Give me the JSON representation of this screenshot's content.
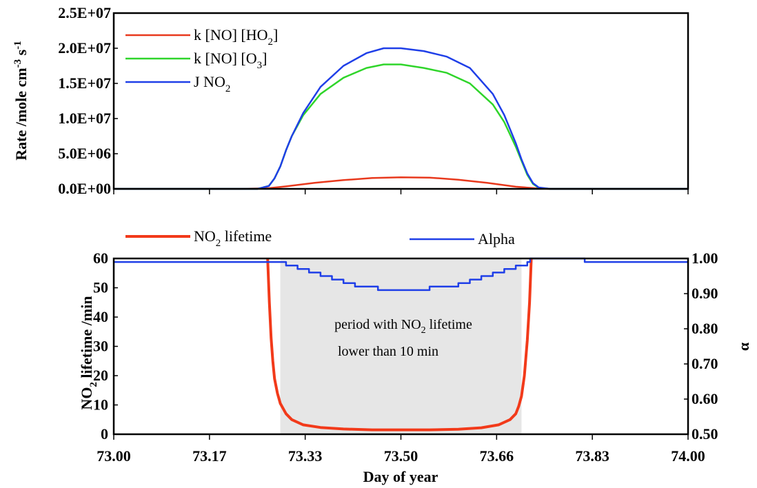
{
  "chart_data": [
    {
      "type": "line",
      "ylabel_main": "Rate /mole cm",
      "ylabel_sup1": "-3",
      "ylabel_mid": " s",
      "ylabel_sup2": "-1",
      "xlim": [
        73.0,
        74.0
      ],
      "ylim": [
        0,
        25000000
      ],
      "y_ticks": [
        "0.0E+00",
        "5.0E+06",
        "1.0E+07",
        "1.5E+07",
        "2.0E+07",
        "2.5E+07"
      ],
      "legend_position": "top-left",
      "series": [
        {
          "name": "k [NO] [HO2]",
          "label_main": "k [NO] [HO",
          "label_sub": "2",
          "label_tail": "]",
          "color": "#e8391d",
          "points": [
            [
              73.0,
              0
            ],
            [
              73.22,
              0
            ],
            [
              73.27,
              100000
            ],
            [
              73.3,
              350000
            ],
            [
              73.35,
              850000
            ],
            [
              73.4,
              1250000
            ],
            [
              73.45,
              1550000
            ],
            [
              73.5,
              1650000
            ],
            [
              73.55,
              1600000
            ],
            [
              73.6,
              1300000
            ],
            [
              73.65,
              850000
            ],
            [
              73.7,
              300000
            ],
            [
              73.74,
              50000
            ],
            [
              73.76,
              0
            ],
            [
              74.0,
              0
            ]
          ]
        },
        {
          "name": "k [NO] [O3]",
          "label_main": "k [NO] [O",
          "label_sub": "3",
          "label_tail": "]",
          "color": "#2fd52a",
          "points": [
            [
              73.0,
              0
            ],
            [
              73.25,
              0
            ],
            [
              73.27,
              400000
            ],
            [
              73.28,
              1500000
            ],
            [
              73.29,
              3200000
            ],
            [
              73.3,
              5500000
            ],
            [
              73.31,
              7500000
            ],
            [
              73.33,
              10500000
            ],
            [
              73.36,
              13500000
            ],
            [
              73.4,
              15800000
            ],
            [
              73.44,
              17200000
            ],
            [
              73.47,
              17700000
            ],
            [
              73.5,
              17700000
            ],
            [
              73.54,
              17200000
            ],
            [
              73.58,
              16500000
            ],
            [
              73.62,
              15000000
            ],
            [
              73.66,
              12000000
            ],
            [
              73.68,
              9500000
            ],
            [
              73.7,
              6000000
            ],
            [
              73.71,
              4000000
            ],
            [
              73.72,
              2000000
            ],
            [
              73.73,
              700000
            ],
            [
              73.74,
              150000
            ],
            [
              73.76,
              0
            ],
            [
              74.0,
              0
            ]
          ]
        },
        {
          "name": "J NO2",
          "label_main": "J NO",
          "label_sub": "2",
          "label_tail": "",
          "color": "#1f3fe8",
          "points": [
            [
              73.0,
              0
            ],
            [
              73.25,
              0
            ],
            [
              73.27,
              400000
            ],
            [
              73.28,
              1500000
            ],
            [
              73.29,
              3200000
            ],
            [
              73.3,
              5500000
            ],
            [
              73.31,
              7500000
            ],
            [
              73.33,
              10800000
            ],
            [
              73.36,
              14500000
            ],
            [
              73.4,
              17500000
            ],
            [
              73.44,
              19300000
            ],
            [
              73.47,
              20000000
            ],
            [
              73.5,
              20000000
            ],
            [
              73.54,
              19600000
            ],
            [
              73.58,
              18800000
            ],
            [
              73.62,
              17200000
            ],
            [
              73.66,
              13500000
            ],
            [
              73.68,
              10500000
            ],
            [
              73.7,
              6500000
            ],
            [
              73.71,
              4200000
            ],
            [
              73.72,
              2200000
            ],
            [
              73.73,
              800000
            ],
            [
              73.74,
              200000
            ],
            [
              73.76,
              0
            ],
            [
              74.0,
              0
            ]
          ]
        }
      ]
    },
    {
      "type": "line",
      "xlabel": "Day of year",
      "x_ticks": [
        "73.00",
        "73.17",
        "73.33",
        "73.50",
        "73.66",
        "73.83",
        "74.00"
      ],
      "xlim": [
        73.0,
        74.0
      ],
      "ylabel_left_a": "NO",
      "ylabel_left_sub": "2",
      "ylabel_left_b": " lifetime /min",
      "ylabel_right": "α",
      "ylim_left": [
        0,
        60
      ],
      "ylim_right": [
        0.5,
        1.0
      ],
      "y_ticks_left": [
        "0",
        "10",
        "20",
        "30",
        "40",
        "50",
        "60"
      ],
      "y_ticks_right": [
        "0.50",
        "0.60",
        "0.70",
        "0.80",
        "0.90",
        "1.00"
      ],
      "shaded_region": [
        73.29,
        73.71
      ],
      "annotation_line1_a": "period with NO",
      "annotation_line1_sub": "2",
      "annotation_line1_b": " lifetime",
      "annotation_line2": "lower than 10 min",
      "legend_position": "top",
      "series": [
        {
          "name": "NO2 lifetime",
          "label_main": "NO",
          "label_sub": "2",
          "label_tail": " lifetime",
          "color": "#f23a1a",
          "axis": "left",
          "points": [
            [
              73.268,
              60
            ],
            [
              73.271,
              45
            ],
            [
              73.274,
              33
            ],
            [
              73.277,
              25
            ],
            [
              73.28,
              19
            ],
            [
              73.285,
              14
            ],
            [
              73.29,
              10.5
            ],
            [
              73.3,
              7
            ],
            [
              73.31,
              5
            ],
            [
              73.33,
              3.2
            ],
            [
              73.36,
              2.3
            ],
            [
              73.4,
              1.8
            ],
            [
              73.45,
              1.5
            ],
            [
              73.5,
              1.5
            ],
            [
              73.55,
              1.5
            ],
            [
              73.6,
              1.7
            ],
            [
              73.64,
              2.2
            ],
            [
              73.67,
              3.2
            ],
            [
              73.69,
              5
            ],
            [
              73.7,
              7
            ],
            [
              73.705,
              9.5
            ],
            [
              73.71,
              13
            ],
            [
              73.715,
              20
            ],
            [
              73.72,
              32
            ],
            [
              73.724,
              45
            ],
            [
              73.727,
              60
            ]
          ]
        },
        {
          "name": "Alpha",
          "color": "#1f3fe8",
          "axis": "right",
          "step": true,
          "points": [
            [
              73.0,
              0.99
            ],
            [
              73.3,
              0.99
            ],
            [
              73.3,
              0.98
            ],
            [
              73.32,
              0.98
            ],
            [
              73.32,
              0.97
            ],
            [
              73.34,
              0.97
            ],
            [
              73.34,
              0.96
            ],
            [
              73.36,
              0.96
            ],
            [
              73.36,
              0.95
            ],
            [
              73.38,
              0.95
            ],
            [
              73.38,
              0.94
            ],
            [
              73.4,
              0.94
            ],
            [
              73.4,
              0.93
            ],
            [
              73.42,
              0.93
            ],
            [
              73.42,
              0.92
            ],
            [
              73.46,
              0.92
            ],
            [
              73.46,
              0.91
            ],
            [
              73.55,
              0.91
            ],
            [
              73.55,
              0.92
            ],
            [
              73.6,
              0.92
            ],
            [
              73.6,
              0.93
            ],
            [
              73.62,
              0.93
            ],
            [
              73.62,
              0.94
            ],
            [
              73.64,
              0.94
            ],
            [
              73.64,
              0.95
            ],
            [
              73.66,
              0.95
            ],
            [
              73.66,
              0.96
            ],
            [
              73.68,
              0.96
            ],
            [
              73.68,
              0.97
            ],
            [
              73.7,
              0.97
            ],
            [
              73.7,
              0.98
            ],
            [
              73.72,
              0.98
            ],
            [
              73.72,
              0.99
            ],
            [
              73.725,
              0.99
            ],
            [
              73.725,
              1.0
            ],
            [
              73.82,
              1.0
            ],
            [
              73.82,
              0.99
            ],
            [
              74.0,
              0.99
            ]
          ]
        }
      ]
    }
  ]
}
